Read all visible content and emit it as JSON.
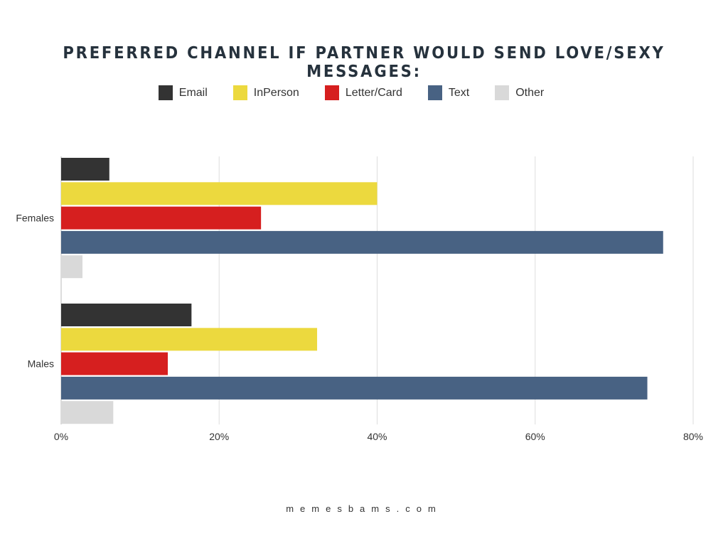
{
  "chart_data": {
    "type": "bar",
    "orientation": "horizontal",
    "title": "PREFERRED CHANNEL IF PARTNER WOULD SEND LOVE/SEXY MESSAGES:",
    "categories": [
      "Females",
      "Males"
    ],
    "series": [
      {
        "name": "Email",
        "color": "#333333",
        "values": [
          6.1,
          16.5
        ]
      },
      {
        "name": "InPerson",
        "color": "#ecd93e",
        "values": [
          40.0,
          32.4
        ]
      },
      {
        "name": "Letter/Card",
        "color": "#d61f1f",
        "values": [
          25.3,
          13.5
        ]
      },
      {
        "name": "Text",
        "color": "#486283",
        "values": [
          76.2,
          74.2
        ]
      },
      {
        "name": "Other",
        "color": "#d9d9d9",
        "values": [
          2.7,
          6.6
        ]
      }
    ],
    "xlim": [
      0,
      80
    ],
    "xticks": [
      "0%",
      "20%",
      "40%",
      "60%",
      "80%"
    ],
    "grid": true,
    "legend": "top"
  },
  "footer": "memesbams.com"
}
